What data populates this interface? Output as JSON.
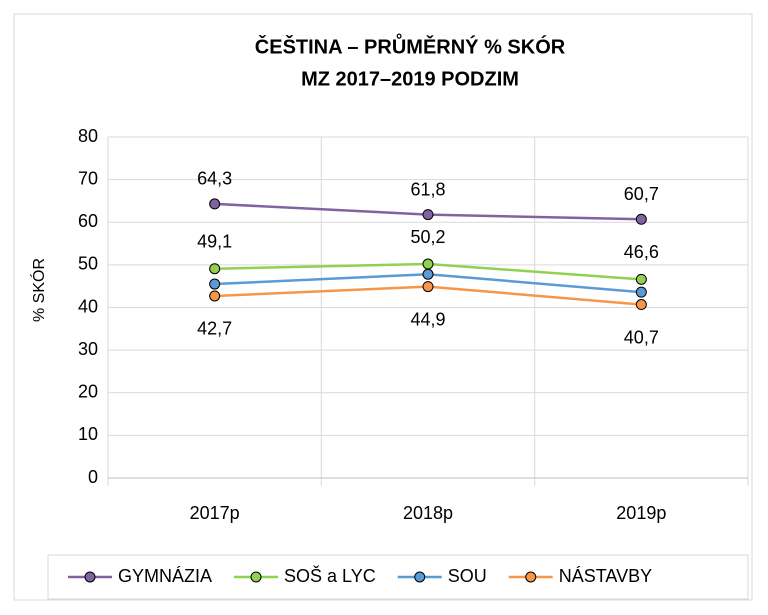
{
  "chart_data": {
    "type": "line",
    "title": [
      "ČEŠTINA – PRŮMĚRNÝ % SKÓR",
      "MZ 2017–2019 PODZIM"
    ],
    "y_label": "% SKÓR",
    "categories": [
      "2017p",
      "2018p",
      "2019p"
    ],
    "series": [
      {
        "name": "GYMNÁZIA",
        "color": "#8064a2",
        "values": [
          64.3,
          61.8,
          60.7
        ],
        "value_labels": [
          "64,3",
          "61,8",
          "60,7"
        ]
      },
      {
        "name": "SOŠ a LYC",
        "color": "#92d050",
        "values": [
          49.1,
          50.2,
          46.6
        ],
        "value_labels": [
          "49,1",
          "50,2",
          "46,6"
        ]
      },
      {
        "name": "SOU",
        "color": "#5b9bd5",
        "values": [
          45.5,
          47.8,
          43.6
        ]
      },
      {
        "name": "NÁSTAVBY",
        "color": "#f79646",
        "values": [
          42.7,
          44.9,
          40.7
        ],
        "value_labels": [
          "42,7",
          "44,9",
          "40,7"
        ]
      }
    ],
    "ylim": [
      0,
      80
    ],
    "yticks": [
      0,
      10,
      20,
      30,
      40,
      50,
      60,
      70,
      80
    ],
    "grid": true,
    "legend": "bottom"
  }
}
